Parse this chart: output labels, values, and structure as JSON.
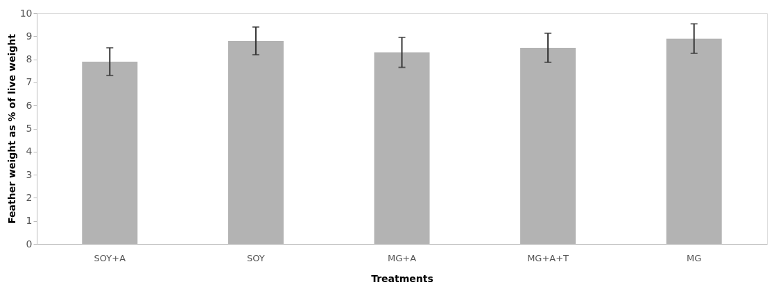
{
  "chart_data": {
    "type": "bar",
    "xlabel": "Treatments",
    "ylabel": "Feather weight as % of live weight",
    "categories": [
      "SOY+A",
      "SOY",
      "MG+A",
      "MG+A+T",
      "MG"
    ],
    "values": [
      7.9,
      8.8,
      8.3,
      8.5,
      8.9
    ],
    "errors": [
      0.6,
      0.6,
      0.65,
      0.63,
      0.64
    ],
    "color": "#b3b3b3",
    "ylim": [
      0,
      10
    ],
    "yticks": [
      0,
      1,
      2,
      3,
      4,
      5,
      6,
      7,
      8,
      9,
      10
    ],
    "grid": false
  }
}
